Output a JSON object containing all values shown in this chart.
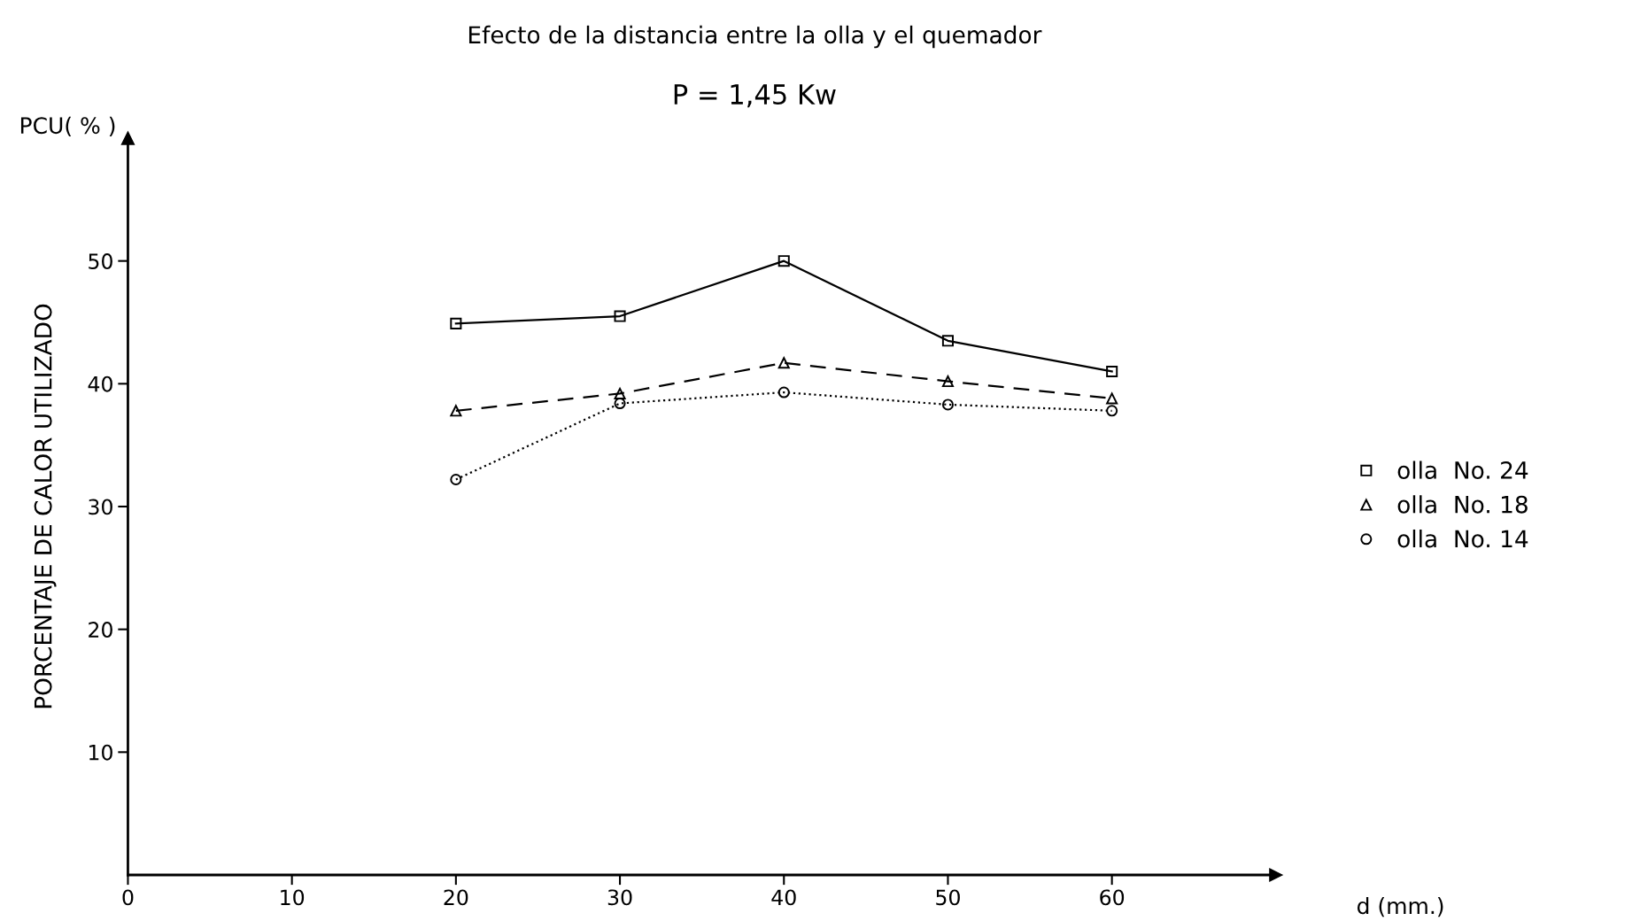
{
  "chart_data": {
    "type": "line",
    "title": "Efecto de la distancia entre la olla y el quemador",
    "subtitle": "P = 1,45 Kw",
    "xlabel": "d (mm.)",
    "ylabel": "PORCENTAJE DE CALOR UTILIZADO",
    "annotations": [
      "PCU( % )"
    ],
    "x": [
      20,
      30,
      40,
      50,
      60
    ],
    "series": [
      {
        "name": "olla  No. 24",
        "color": "#000000",
        "marker": "square",
        "line_style": "solid",
        "values": [
          44.9,
          45.5,
          50.0,
          43.5,
          41.0
        ]
      },
      {
        "name": "olla  No. 18",
        "color": "#000000",
        "marker": "triangle",
        "line_style": "dashed",
        "values": [
          37.8,
          39.2,
          41.7,
          40.2,
          38.8
        ]
      },
      {
        "name": "olla  No. 14",
        "color": "#000000",
        "marker": "circle",
        "line_style": "dotted",
        "values": [
          32.2,
          38.4,
          39.3,
          38.3,
          37.8
        ]
      }
    ],
    "xlim": [
      0,
      70
    ],
    "ylim": [
      0,
      60
    ],
    "xticks": [
      0,
      10,
      20,
      30,
      40,
      50,
      60
    ],
    "yticks": [
      10,
      20,
      30,
      40,
      50
    ],
    "grid": false,
    "legend": "right"
  }
}
